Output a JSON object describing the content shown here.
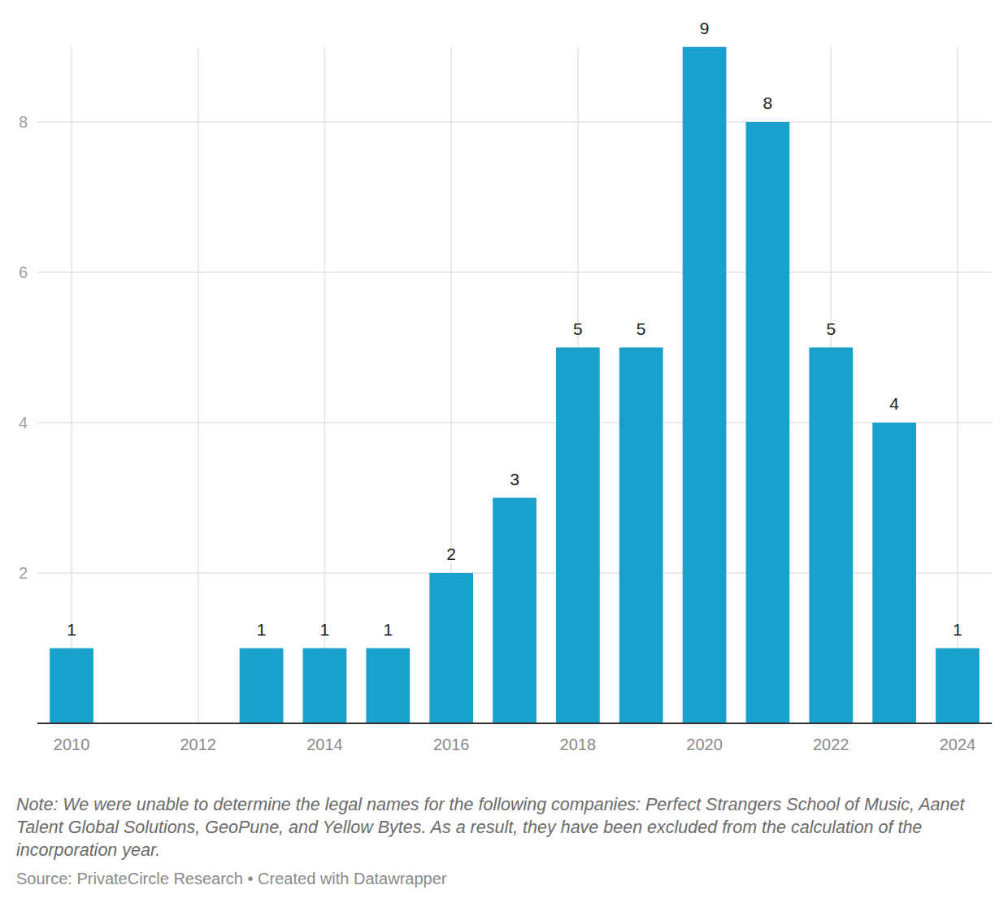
{
  "chart_data": {
    "type": "bar",
    "x": [
      2010,
      2013,
      2014,
      2015,
      2016,
      2017,
      2018,
      2019,
      2020,
      2021,
      2022,
      2023,
      2024
    ],
    "values": [
      1,
      1,
      1,
      1,
      2,
      3,
      5,
      5,
      9,
      8,
      5,
      4,
      1
    ],
    "color": "#19a0cc",
    "xlim": [
      2009.46,
      2024.54
    ],
    "xticks": [
      2010,
      2012,
      2014,
      2016,
      2018,
      2020,
      2022,
      2024
    ],
    "ylim": [
      0,
      9
    ],
    "yticks": [
      2,
      4,
      6,
      8
    ],
    "grid": true,
    "data_labels": true,
    "note": "Note: We were unable to determine the legal names for the following companies: Perfect Strangers School of Music, Aanet Talent Global Solutions, GeoPune, and Yellow Bytes. As a result, they have been excluded from the calculation of the incorporation year.",
    "source": "Source: PrivateCircle Research • Created with Datawrapper"
  }
}
